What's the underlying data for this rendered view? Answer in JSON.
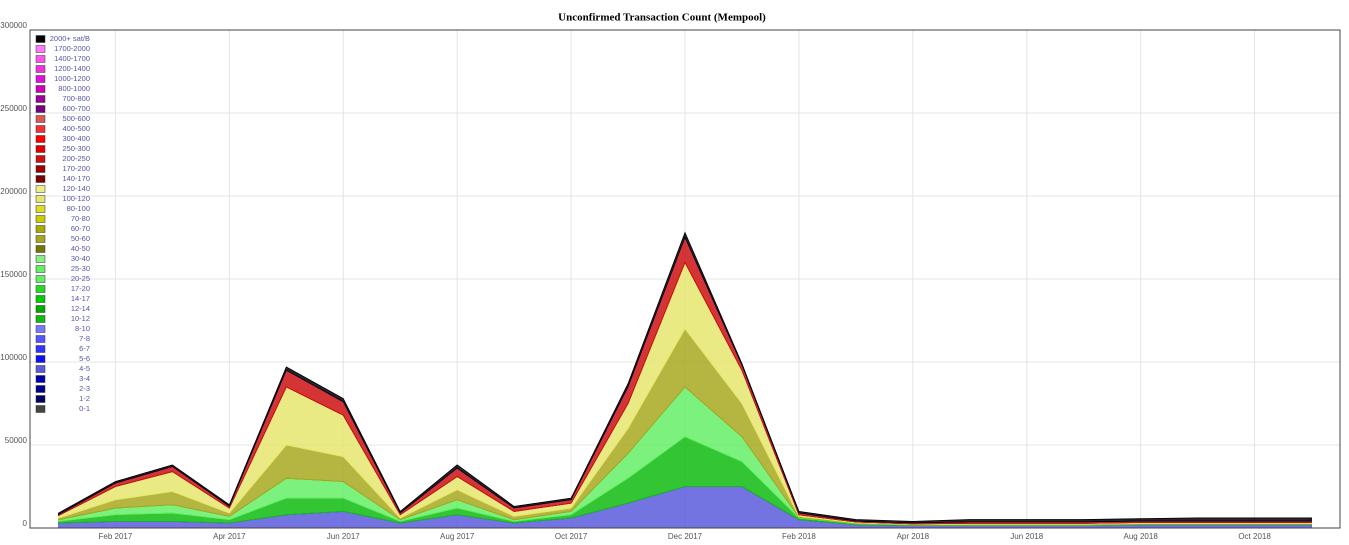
{
  "chart_data": {
    "type": "stacked-area",
    "title": "Unconfirmed Transaction Count (Mempool)",
    "categories": [
      null,
      "Feb 2017",
      null,
      "Apr 2017",
      null,
      "Jun 2017",
      null,
      "Aug 2017",
      null,
      "Oct 2017",
      null,
      "Dec 2017",
      null,
      "Feb 2018",
      null,
      "Apr 2018",
      null,
      "Jun 2018",
      null,
      "Aug 2018",
      null,
      "Oct 2018",
      null
    ],
    "ylim": [
      0,
      300000
    ],
    "yticks": [
      0,
      50000,
      100000,
      150000,
      200000,
      250000,
      300000
    ],
    "grid": true,
    "legend": "top-left",
    "series": [
      {
        "name": "2000+ sat/B",
        "color": "#000000",
        "values": [
          1000,
          1000,
          1000,
          1000,
          2000,
          2000,
          1000,
          2000,
          1000,
          1000,
          2000,
          3000,
          1000,
          1000,
          1000,
          1000,
          1500,
          1500,
          1500,
          1500,
          2000,
          2000,
          2000
        ]
      },
      {
        "name": "1700-2000",
        "color": "#ff77ff",
        "values": [
          0,
          0,
          0,
          0,
          0,
          0,
          0,
          0,
          0,
          0,
          0,
          0,
          0,
          0,
          0,
          0,
          0,
          0,
          0,
          0,
          0,
          0,
          0
        ]
      },
      {
        "name": "1400-1700",
        "color": "#ff55ee",
        "values": [
          0,
          0,
          0,
          0,
          0,
          0,
          0,
          0,
          0,
          0,
          0,
          0,
          0,
          0,
          0,
          0,
          0,
          0,
          0,
          0,
          0,
          0,
          0
        ]
      },
      {
        "name": "1200-1400",
        "color": "#ee33dd",
        "values": [
          0,
          0,
          0,
          0,
          0,
          0,
          0,
          0,
          0,
          0,
          0,
          0,
          0,
          0,
          0,
          0,
          0,
          0,
          0,
          0,
          0,
          0,
          0
        ]
      },
      {
        "name": "1000-1200",
        "color": "#dd11dd",
        "values": [
          0,
          0,
          0,
          0,
          0,
          0,
          0,
          0,
          0,
          0,
          0,
          0,
          0,
          0,
          0,
          0,
          0,
          0,
          0,
          0,
          0,
          0,
          0
        ]
      },
      {
        "name": "800-1000",
        "color": "#cc00bb",
        "values": [
          0,
          0,
          0,
          0,
          0,
          0,
          0,
          0,
          0,
          0,
          0,
          0,
          0,
          0,
          0,
          0,
          0,
          0,
          0,
          0,
          0,
          0,
          0
        ]
      },
      {
        "name": "700-800",
        "color": "#990099",
        "values": [
          0,
          0,
          0,
          0,
          0,
          0,
          0,
          0,
          0,
          0,
          0,
          0,
          0,
          0,
          0,
          0,
          0,
          0,
          0,
          0,
          0,
          0,
          0
        ]
      },
      {
        "name": "600-700",
        "color": "#770077",
        "values": [
          0,
          0,
          0,
          0,
          0,
          0,
          0,
          0,
          0,
          0,
          0,
          0,
          0,
          0,
          0,
          0,
          0,
          0,
          0,
          0,
          0,
          0,
          0
        ]
      },
      {
        "name": "500-600",
        "color": "#dd5555",
        "values": [
          0,
          0,
          0,
          0,
          0,
          0,
          0,
          0,
          0,
          0,
          0,
          0,
          0,
          0,
          0,
          0,
          0,
          0,
          0,
          0,
          0,
          0,
          0
        ]
      },
      {
        "name": "400-500",
        "color": "#ee3333",
        "values": [
          0,
          0,
          0,
          0,
          0,
          0,
          0,
          0,
          0,
          0,
          0,
          0,
          0,
          0,
          0,
          0,
          0,
          0,
          0,
          0,
          0,
          0,
          0
        ]
      },
      {
        "name": "300-400",
        "color": "#ff0000",
        "values": [
          0,
          0,
          0,
          0,
          0,
          0,
          0,
          0,
          0,
          0,
          0,
          0,
          0,
          0,
          0,
          0,
          0,
          0,
          0,
          0,
          0,
          0,
          0
        ]
      },
      {
        "name": "250-300",
        "color": "#dd0000",
        "values": [
          0,
          0,
          0,
          0,
          0,
          0,
          0,
          0,
          0,
          0,
          0,
          0,
          0,
          0,
          0,
          0,
          0,
          0,
          0,
          0,
          0,
          0,
          0
        ]
      },
      {
        "name": "200-250",
        "color": "#cc1111",
        "values": [
          500,
          2000,
          3000,
          1000,
          10000,
          8000,
          1000,
          5000,
          2000,
          2000,
          10000,
          15000,
          3000,
          1000,
          500,
          500,
          800,
          800,
          800,
          800,
          800,
          800,
          800
        ]
      },
      {
        "name": "170-200",
        "color": "#990000",
        "values": [
          0,
          0,
          0,
          0,
          0,
          0,
          0,
          0,
          0,
          0,
          0,
          0,
          0,
          0,
          0,
          0,
          0,
          0,
          0,
          0,
          0,
          0,
          0
        ]
      },
      {
        "name": "140-170",
        "color": "#770000",
        "values": [
          0,
          0,
          0,
          0,
          0,
          0,
          0,
          0,
          0,
          0,
          0,
          0,
          0,
          0,
          0,
          0,
          0,
          0,
          0,
          0,
          0,
          0,
          0
        ]
      },
      {
        "name": "120-140",
        "color": "#eeee88",
        "values": [
          0,
          0,
          0,
          0,
          0,
          0,
          0,
          0,
          0,
          0,
          0,
          0,
          0,
          0,
          0,
          0,
          0,
          0,
          0,
          0,
          0,
          0,
          0
        ]
      },
      {
        "name": "100-120",
        "color": "#e6e670",
        "values": [
          1500,
          8000,
          12000,
          3000,
          35000,
          25000,
          2000,
          8000,
          3000,
          3000,
          15000,
          40000,
          20000,
          1000,
          500,
          300,
          500,
          500,
          500,
          500,
          500,
          500,
          500
        ]
      },
      {
        "name": "80-100",
        "color": "#dddd22",
        "values": [
          0,
          0,
          0,
          0,
          0,
          0,
          0,
          0,
          0,
          0,
          0,
          0,
          0,
          0,
          0,
          0,
          0,
          0,
          0,
          0,
          0,
          0,
          0
        ]
      },
      {
        "name": "70-80",
        "color": "#cccc00",
        "values": [
          0,
          0,
          0,
          0,
          0,
          0,
          0,
          0,
          0,
          0,
          0,
          0,
          0,
          0,
          0,
          0,
          0,
          0,
          0,
          0,
          0,
          0,
          0
        ]
      },
      {
        "name": "60-70",
        "color": "#aaaa00",
        "values": [
          0,
          0,
          0,
          0,
          0,
          0,
          0,
          0,
          0,
          0,
          0,
          0,
          0,
          0,
          0,
          0,
          0,
          0,
          0,
          0,
          0,
          0,
          0
        ]
      },
      {
        "name": "50-60",
        "color": "#a8a820",
        "values": [
          1000,
          5000,
          8000,
          2000,
          20000,
          15000,
          1000,
          6000,
          2000,
          2000,
          15000,
          35000,
          20000,
          500,
          300,
          200,
          300,
          300,
          300,
          300,
          300,
          300,
          300
        ]
      },
      {
        "name": "40-50",
        "color": "#777700",
        "values": [
          0,
          0,
          0,
          0,
          0,
          0,
          0,
          0,
          0,
          0,
          0,
          0,
          0,
          0,
          0,
          0,
          0,
          0,
          0,
          0,
          0,
          0,
          0
        ]
      },
      {
        "name": "30-40",
        "color": "#88ee88",
        "values": [
          0,
          0,
          0,
          0,
          0,
          0,
          0,
          0,
          0,
          0,
          0,
          0,
          0,
          0,
          0,
          0,
          0,
          0,
          0,
          0,
          0,
          0,
          0
        ]
      },
      {
        "name": "25-30",
        "color": "#66ee66",
        "values": [
          0,
          0,
          0,
          0,
          0,
          0,
          0,
          0,
          0,
          0,
          0,
          0,
          0,
          0,
          0,
          0,
          0,
          0,
          0,
          0,
          0,
          0,
          0
        ]
      },
      {
        "name": "20-25",
        "color": "#66ee66",
        "values": [
          1000,
          4000,
          5000,
          2000,
          12000,
          10000,
          1000,
          5000,
          1000,
          2000,
          15000,
          30000,
          15000,
          500,
          300,
          200,
          200,
          200,
          200,
          200,
          200,
          200,
          200
        ]
      },
      {
        "name": "17-20",
        "color": "#22dd22",
        "values": [
          0,
          0,
          0,
          0,
          0,
          0,
          0,
          0,
          0,
          0,
          0,
          0,
          0,
          0,
          0,
          0,
          0,
          0,
          0,
          0,
          0,
          0,
          0
        ]
      },
      {
        "name": "14-17",
        "color": "#00cc00",
        "values": [
          0,
          0,
          0,
          0,
          0,
          0,
          0,
          0,
          0,
          0,
          0,
          0,
          0,
          0,
          0,
          0,
          0,
          0,
          0,
          0,
          0,
          0,
          0
        ]
      },
      {
        "name": "12-14",
        "color": "#00aa00",
        "values": [
          0,
          0,
          0,
          0,
          0,
          0,
          0,
          0,
          0,
          0,
          0,
          0,
          0,
          0,
          0,
          0,
          0,
          0,
          0,
          0,
          0,
          0,
          0
        ]
      },
      {
        "name": "10-12",
        "color": "#11bb11",
        "values": [
          1000,
          4000,
          5000,
          2000,
          10000,
          8000,
          1000,
          4000,
          1000,
          2000,
          15000,
          30000,
          15000,
          1000,
          500,
          300,
          300,
          300,
          300,
          300,
          300,
          300,
          300
        ]
      },
      {
        "name": "8-10",
        "color": "#7777ff",
        "values": [
          0,
          0,
          0,
          0,
          0,
          0,
          0,
          0,
          0,
          0,
          0,
          0,
          0,
          0,
          0,
          0,
          0,
          0,
          0,
          0,
          0,
          0,
          0
        ]
      },
      {
        "name": "7-8",
        "color": "#5555ff",
        "values": [
          0,
          0,
          0,
          0,
          0,
          0,
          0,
          0,
          0,
          0,
          0,
          0,
          0,
          0,
          0,
          0,
          0,
          0,
          0,
          0,
          0,
          0,
          0
        ]
      },
      {
        "name": "6-7",
        "color": "#3333ff",
        "values": [
          0,
          0,
          0,
          0,
          0,
          0,
          0,
          0,
          0,
          0,
          0,
          0,
          0,
          0,
          0,
          0,
          0,
          0,
          0,
          0,
          0,
          0,
          0
        ]
      },
      {
        "name": "5-6",
        "color": "#1111ee",
        "values": [
          0,
          0,
          0,
          0,
          0,
          0,
          0,
          0,
          0,
          0,
          0,
          0,
          0,
          0,
          0,
          0,
          0,
          0,
          0,
          0,
          0,
          0,
          0
        ]
      },
      {
        "name": "4-5",
        "color": "#5a5add",
        "values": [
          3000,
          4000,
          4000,
          3000,
          8000,
          10000,
          3000,
          8000,
          3000,
          6000,
          15000,
          25000,
          25000,
          5000,
          2000,
          1500,
          1500,
          1500,
          1500,
          2000,
          2000,
          2000,
          2000
        ]
      },
      {
        "name": "3-4",
        "color": "#0000aa",
        "values": [
          0,
          0,
          0,
          0,
          0,
          0,
          0,
          0,
          0,
          0,
          0,
          0,
          0,
          0,
          0,
          0,
          0,
          0,
          0,
          0,
          0,
          0,
          0
        ]
      },
      {
        "name": "2-3",
        "color": "#000088",
        "values": [
          0,
          0,
          0,
          0,
          0,
          0,
          0,
          0,
          0,
          0,
          0,
          0,
          0,
          0,
          0,
          0,
          0,
          0,
          0,
          0,
          0,
          0,
          0
        ]
      },
      {
        "name": "1-2",
        "color": "#000066",
        "values": [
          0,
          0,
          0,
          0,
          0,
          0,
          0,
          0,
          0,
          0,
          0,
          0,
          0,
          0,
          0,
          0,
          0,
          0,
          0,
          0,
          0,
          0,
          0
        ]
      },
      {
        "name": "0-1",
        "color": "#444444",
        "values": [
          0,
          0,
          0,
          0,
          0,
          0,
          0,
          0,
          0,
          0,
          0,
          0,
          0,
          0,
          0,
          0,
          0,
          0,
          0,
          0,
          0,
          0,
          0
        ]
      }
    ]
  }
}
